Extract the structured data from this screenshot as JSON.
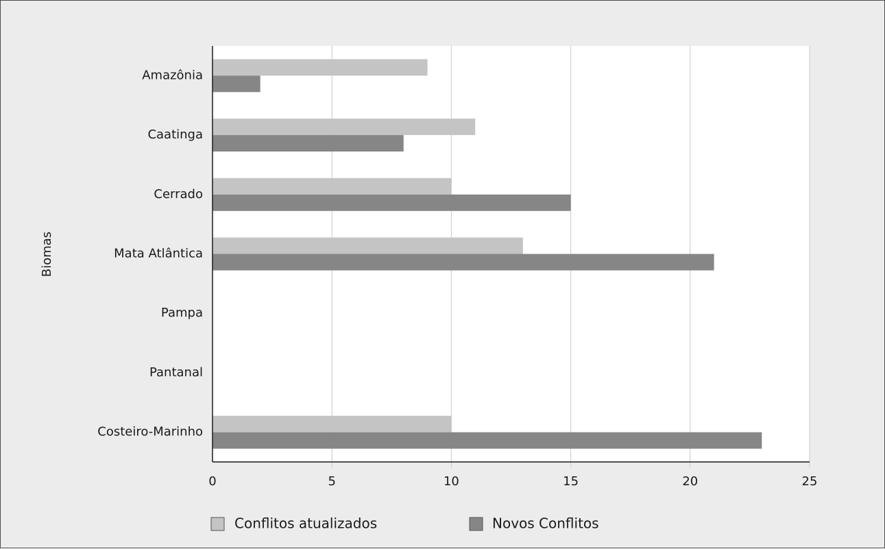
{
  "chart_data": {
    "type": "bar",
    "orientation": "horizontal",
    "categories": [
      "Amazônia",
      "Caatinga",
      "Cerrado",
      "Mata Atlântica",
      "Pampa",
      "Pantanal",
      "Costeiro-Marinho"
    ],
    "series": [
      {
        "name": "Conflitos atualizados",
        "values": [
          9,
          11,
          10,
          13,
          0,
          0,
          10
        ],
        "color": "#c4c4c4"
      },
      {
        "name": "Novos Conflitos",
        "values": [
          2,
          8,
          15,
          21,
          0,
          0,
          23
        ],
        "color": "#868686"
      }
    ],
    "xlim": [
      0,
      25
    ],
    "xticks": [
      "0",
      "5",
      "10",
      "15",
      "20",
      "25"
    ],
    "ylabel": "Biomas",
    "xlabel": "",
    "grid": "vertical",
    "legend": "bottom"
  }
}
